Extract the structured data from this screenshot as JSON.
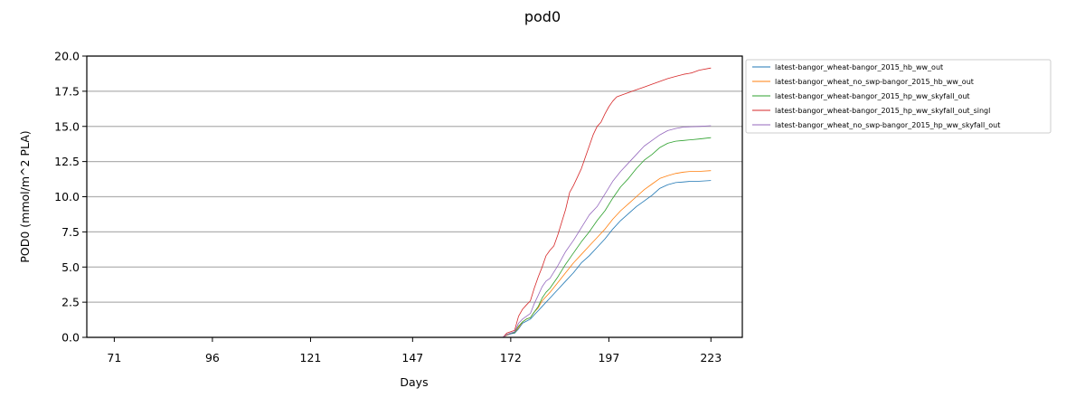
{
  "chart_data": {
    "type": "line",
    "title": "pod0",
    "xlabel": "Days",
    "ylabel": "POD0 (mmol/m^2 PLA)",
    "xlim": [
      64,
      231
    ],
    "ylim": [
      0,
      20
    ],
    "x_ticks": [
      71,
      96,
      121,
      147,
      172,
      197,
      223
    ],
    "y_ticks": [
      "0.0",
      "2.5",
      "5.0",
      "7.5",
      "10.0",
      "12.5",
      "15.0",
      "17.5",
      "20.0"
    ],
    "grid": "horizontal",
    "legend_position": "outside-right-top",
    "series": [
      {
        "name": "latest-bangor_wheat-bangor_2015_hb_ww_out",
        "color": "#1f77b4",
        "points": [
          [
            71,
            0
          ],
          [
            170,
            0
          ],
          [
            171,
            0.15
          ],
          [
            172,
            0.25
          ],
          [
            173,
            0.3
          ],
          [
            174,
            0.6
          ],
          [
            175,
            1.0
          ],
          [
            176,
            1.15
          ],
          [
            177,
            1.3
          ],
          [
            178,
            1.6
          ],
          [
            179,
            1.9
          ],
          [
            180,
            2.2
          ],
          [
            182,
            2.8
          ],
          [
            184,
            3.4
          ],
          [
            186,
            4.0
          ],
          [
            188,
            4.6
          ],
          [
            190,
            5.3
          ],
          [
            192,
            5.8
          ],
          [
            194,
            6.4
          ],
          [
            196,
            7.0
          ],
          [
            198,
            7.7
          ],
          [
            200,
            8.3
          ],
          [
            202,
            8.8
          ],
          [
            204,
            9.3
          ],
          [
            206,
            9.7
          ],
          [
            208,
            10.1
          ],
          [
            210,
            10.6
          ],
          [
            212,
            10.85
          ],
          [
            214,
            11.0
          ],
          [
            216,
            11.05
          ],
          [
            218,
            11.1
          ],
          [
            220,
            11.1
          ],
          [
            223,
            11.15
          ]
        ]
      },
      {
        "name": "latest-bangor_wheat_no_swp-bangor_2015_hb_ww_out",
        "color": "#ff7f0e",
        "points": [
          [
            71,
            0
          ],
          [
            170,
            0
          ],
          [
            171,
            0.15
          ],
          [
            172,
            0.3
          ],
          [
            173,
            0.35
          ],
          [
            174,
            0.7
          ],
          [
            175,
            1.1
          ],
          [
            176,
            1.3
          ],
          [
            177,
            1.4
          ],
          [
            178,
            1.8
          ],
          [
            179,
            2.1
          ],
          [
            180,
            2.6
          ],
          [
            182,
            3.2
          ],
          [
            184,
            3.9
          ],
          [
            186,
            4.6
          ],
          [
            188,
            5.3
          ],
          [
            190,
            5.9
          ],
          [
            192,
            6.5
          ],
          [
            194,
            7.1
          ],
          [
            196,
            7.7
          ],
          [
            198,
            8.4
          ],
          [
            200,
            9.0
          ],
          [
            202,
            9.5
          ],
          [
            204,
            10.0
          ],
          [
            206,
            10.5
          ],
          [
            208,
            10.9
          ],
          [
            210,
            11.3
          ],
          [
            212,
            11.5
          ],
          [
            214,
            11.65
          ],
          [
            216,
            11.75
          ],
          [
            218,
            11.8
          ],
          [
            220,
            11.8
          ],
          [
            223,
            11.85
          ]
        ]
      },
      {
        "name": "latest-bangor_wheat-bangor_2015_hp_ww_skyfall_out",
        "color": "#2ca02c",
        "points": [
          [
            71,
            0
          ],
          [
            170,
            0
          ],
          [
            171,
            0.2
          ],
          [
            172,
            0.3
          ],
          [
            173,
            0.35
          ],
          [
            174,
            0.8
          ],
          [
            175,
            1.1
          ],
          [
            176,
            1.3
          ],
          [
            177,
            1.4
          ],
          [
            178,
            1.8
          ],
          [
            179,
            2.2
          ],
          [
            180,
            2.8
          ],
          [
            181,
            3.2
          ],
          [
            182,
            3.5
          ],
          [
            184,
            4.3
          ],
          [
            186,
            5.2
          ],
          [
            188,
            6.0
          ],
          [
            190,
            6.8
          ],
          [
            192,
            7.5
          ],
          [
            194,
            8.3
          ],
          [
            196,
            9.0
          ],
          [
            198,
            9.9
          ],
          [
            200,
            10.7
          ],
          [
            202,
            11.3
          ],
          [
            204,
            12.0
          ],
          [
            206,
            12.6
          ],
          [
            208,
            13.0
          ],
          [
            210,
            13.5
          ],
          [
            212,
            13.8
          ],
          [
            214,
            13.95
          ],
          [
            216,
            14.0
          ],
          [
            220,
            14.1
          ],
          [
            223,
            14.2
          ]
        ]
      },
      {
        "name": "latest-bangor_wheat-bangor_2015_hp_ww_skyfall_out_singl",
        "color": "#d62728",
        "points": [
          [
            71,
            0
          ],
          [
            170,
            0
          ],
          [
            171,
            0.3
          ],
          [
            172,
            0.4
          ],
          [
            173,
            0.5
          ],
          [
            174,
            1.5
          ],
          [
            175,
            2.0
          ],
          [
            176,
            2.3
          ],
          [
            177,
            2.6
          ],
          [
            178,
            3.5
          ],
          [
            179,
            4.3
          ],
          [
            180,
            5.0
          ],
          [
            181,
            5.8
          ],
          [
            182,
            6.2
          ],
          [
            183,
            6.5
          ],
          [
            184,
            7.3
          ],
          [
            185,
            8.2
          ],
          [
            186,
            9.1
          ],
          [
            187,
            10.3
          ],
          [
            188,
            10.8
          ],
          [
            189,
            11.4
          ],
          [
            190,
            12.0
          ],
          [
            191,
            12.8
          ],
          [
            192,
            13.6
          ],
          [
            193,
            14.4
          ],
          [
            194,
            15.0
          ],
          [
            195,
            15.3
          ],
          [
            196,
            15.9
          ],
          [
            197,
            16.4
          ],
          [
            198,
            16.8
          ],
          [
            199,
            17.1
          ],
          [
            200,
            17.2
          ],
          [
            202,
            17.4
          ],
          [
            204,
            17.6
          ],
          [
            206,
            17.8
          ],
          [
            208,
            18.0
          ],
          [
            210,
            18.2
          ],
          [
            212,
            18.4
          ],
          [
            214,
            18.55
          ],
          [
            216,
            18.7
          ],
          [
            218,
            18.8
          ],
          [
            220,
            19.0
          ],
          [
            223,
            19.15
          ]
        ]
      },
      {
        "name": "latest-bangor_wheat_no_swp-bangor_2015_hp_ww_skyfall_out",
        "color": "#9467bd",
        "points": [
          [
            71,
            0
          ],
          [
            170,
            0
          ],
          [
            171,
            0.2
          ],
          [
            172,
            0.3
          ],
          [
            173,
            0.4
          ],
          [
            174,
            1.0
          ],
          [
            175,
            1.3
          ],
          [
            176,
            1.5
          ],
          [
            177,
            1.7
          ],
          [
            178,
            2.4
          ],
          [
            179,
            3.0
          ],
          [
            180,
            3.6
          ],
          [
            181,
            4.0
          ],
          [
            182,
            4.2
          ],
          [
            184,
            5.1
          ],
          [
            186,
            6.1
          ],
          [
            188,
            6.9
          ],
          [
            190,
            7.8
          ],
          [
            192,
            8.7
          ],
          [
            194,
            9.3
          ],
          [
            196,
            10.2
          ],
          [
            198,
            11.1
          ],
          [
            200,
            11.8
          ],
          [
            202,
            12.4
          ],
          [
            204,
            13.0
          ],
          [
            206,
            13.6
          ],
          [
            208,
            14.0
          ],
          [
            210,
            14.4
          ],
          [
            212,
            14.7
          ],
          [
            214,
            14.85
          ],
          [
            216,
            14.95
          ],
          [
            220,
            15.0
          ],
          [
            223,
            15.05
          ]
        ]
      }
    ]
  }
}
